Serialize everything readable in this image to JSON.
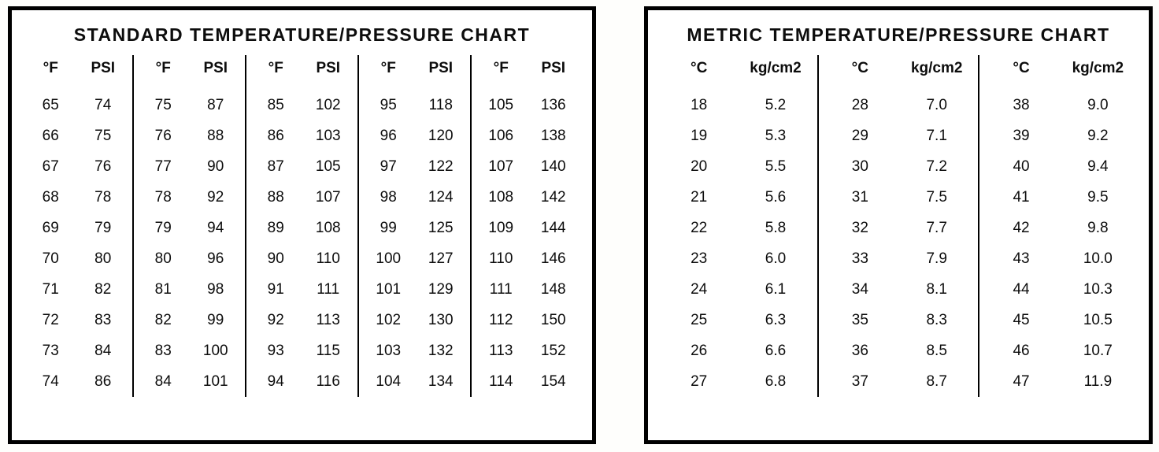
{
  "standard_chart": {
    "title": "STANDARD TEMPERATURE/PRESSURE CHART",
    "headers": {
      "temp": "°F",
      "pressure": "PSI"
    },
    "columns": [
      [
        [
          "65",
          "74"
        ],
        [
          "66",
          "75"
        ],
        [
          "67",
          "76"
        ],
        [
          "68",
          "78"
        ],
        [
          "69",
          "79"
        ],
        [
          "70",
          "80"
        ],
        [
          "71",
          "82"
        ],
        [
          "72",
          "83"
        ],
        [
          "73",
          "84"
        ],
        [
          "74",
          "86"
        ]
      ],
      [
        [
          "75",
          "87"
        ],
        [
          "76",
          "88"
        ],
        [
          "77",
          "90"
        ],
        [
          "78",
          "92"
        ],
        [
          "79",
          "94"
        ],
        [
          "80",
          "96"
        ],
        [
          "81",
          "98"
        ],
        [
          "82",
          "99"
        ],
        [
          "83",
          "100"
        ],
        [
          "84",
          "101"
        ]
      ],
      [
        [
          "85",
          "102"
        ],
        [
          "86",
          "103"
        ],
        [
          "87",
          "105"
        ],
        [
          "88",
          "107"
        ],
        [
          "89",
          "108"
        ],
        [
          "90",
          "110"
        ],
        [
          "91",
          "111"
        ],
        [
          "92",
          "113"
        ],
        [
          "93",
          "115"
        ],
        [
          "94",
          "116"
        ]
      ],
      [
        [
          "95",
          "118"
        ],
        [
          "96",
          "120"
        ],
        [
          "97",
          "122"
        ],
        [
          "98",
          "124"
        ],
        [
          "99",
          "125"
        ],
        [
          "100",
          "127"
        ],
        [
          "101",
          "129"
        ],
        [
          "102",
          "130"
        ],
        [
          "103",
          "132"
        ],
        [
          "104",
          "134"
        ]
      ],
      [
        [
          "105",
          "136"
        ],
        [
          "106",
          "138"
        ],
        [
          "107",
          "140"
        ],
        [
          "108",
          "142"
        ],
        [
          "109",
          "144"
        ],
        [
          "110",
          "146"
        ],
        [
          "111",
          "148"
        ],
        [
          "112",
          "150"
        ],
        [
          "113",
          "152"
        ],
        [
          "114",
          "154"
        ]
      ]
    ]
  },
  "metric_chart": {
    "title": "METRIC TEMPERATURE/PRESSURE CHART",
    "headers": {
      "temp": "°C",
      "pressure": "kg/cm2"
    },
    "columns": [
      [
        [
          "18",
          "5.2"
        ],
        [
          "19",
          "5.3"
        ],
        [
          "20",
          "5.5"
        ],
        [
          "21",
          "5.6"
        ],
        [
          "22",
          "5.8"
        ],
        [
          "23",
          "6.0"
        ],
        [
          "24",
          "6.1"
        ],
        [
          "25",
          "6.3"
        ],
        [
          "26",
          "6.6"
        ],
        [
          "27",
          "6.8"
        ]
      ],
      [
        [
          "28",
          "7.0"
        ],
        [
          "29",
          "7.1"
        ],
        [
          "30",
          "7.2"
        ],
        [
          "31",
          "7.5"
        ],
        [
          "32",
          "7.7"
        ],
        [
          "33",
          "7.9"
        ],
        [
          "34",
          "8.1"
        ],
        [
          "35",
          "8.3"
        ],
        [
          "36",
          "8.5"
        ],
        [
          "37",
          "8.7"
        ]
      ],
      [
        [
          "38",
          "9.0"
        ],
        [
          "39",
          "9.2"
        ],
        [
          "40",
          "9.4"
        ],
        [
          "41",
          "9.5"
        ],
        [
          "42",
          "9.8"
        ],
        [
          "43",
          "10.0"
        ],
        [
          "44",
          "10.3"
        ],
        [
          "45",
          "10.5"
        ],
        [
          "46",
          "10.7"
        ],
        [
          "47",
          "11.9"
        ]
      ]
    ]
  }
}
